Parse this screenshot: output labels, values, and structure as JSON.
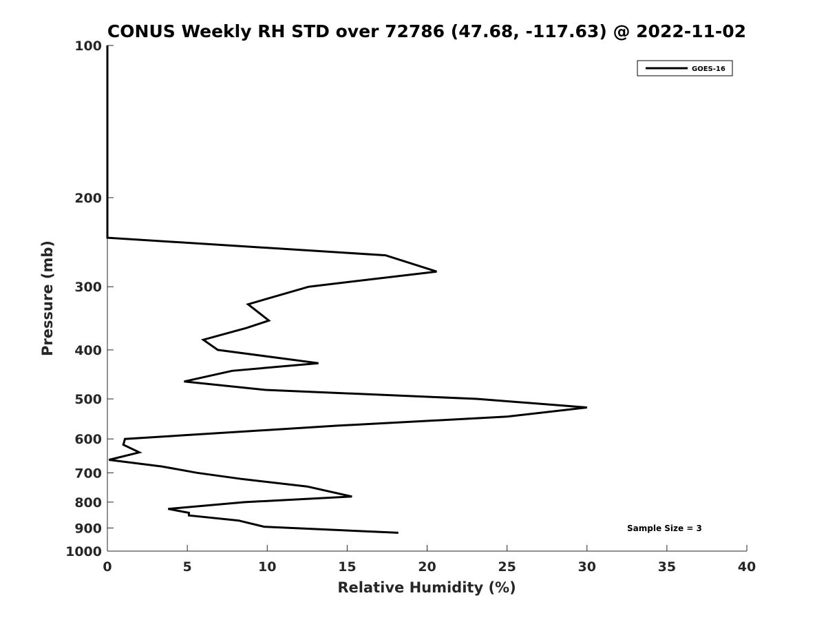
{
  "chart_data": {
    "type": "line",
    "title": "CONUS Weekly RH STD over 72786 (47.68, -117.63) @ 2022-11-02",
    "xlabel": "Relative Humidity (%)",
    "ylabel": "Pressure (mb)",
    "xlim": [
      0,
      40
    ],
    "ylim": [
      100,
      1000
    ],
    "y_scale": "log",
    "y_reversed": true,
    "grid": false,
    "legend_placement": "top-right",
    "x_ticks": [
      "0",
      "5",
      "10",
      "15",
      "20",
      "25",
      "30",
      "35",
      "40"
    ],
    "y_ticks": [
      "100",
      "200",
      "300",
      "400",
      "500",
      "600",
      "700",
      "800",
      "900",
      "1000"
    ],
    "series": [
      {
        "name": "GOES-16",
        "color": "#000000",
        "points": [
          [
            0,
            100
          ],
          [
            0,
            150
          ],
          [
            0,
            200
          ],
          [
            0,
            240
          ],
          [
            17.4,
            260
          ],
          [
            20.6,
            280
          ],
          [
            12.6,
            300
          ],
          [
            8.8,
            325
          ],
          [
            10.1,
            350
          ],
          [
            8.7,
            362
          ],
          [
            6.0,
            382
          ],
          [
            6.9,
            400
          ],
          [
            13.2,
            425
          ],
          [
            7.8,
            440
          ],
          [
            4.8,
            462
          ],
          [
            9.9,
            480
          ],
          [
            23.1,
            500
          ],
          [
            30.0,
            520
          ],
          [
            25.0,
            542
          ],
          [
            14.3,
            565
          ],
          [
            1.1,
            600
          ],
          [
            1.0,
            616
          ],
          [
            2.0,
            638
          ],
          [
            0.1,
            660
          ],
          [
            3.4,
            680
          ],
          [
            5.6,
            700
          ],
          [
            8.4,
            720
          ],
          [
            12.5,
            745
          ],
          [
            15.3,
            780
          ],
          [
            8.6,
            800
          ],
          [
            3.8,
            825
          ],
          [
            5.1,
            840
          ],
          [
            5.1,
            850
          ],
          [
            8.2,
            870
          ],
          [
            9.8,
            895
          ],
          [
            18.2,
            920
          ]
        ]
      }
    ],
    "annotations": [
      "Sample Size = 3"
    ]
  }
}
